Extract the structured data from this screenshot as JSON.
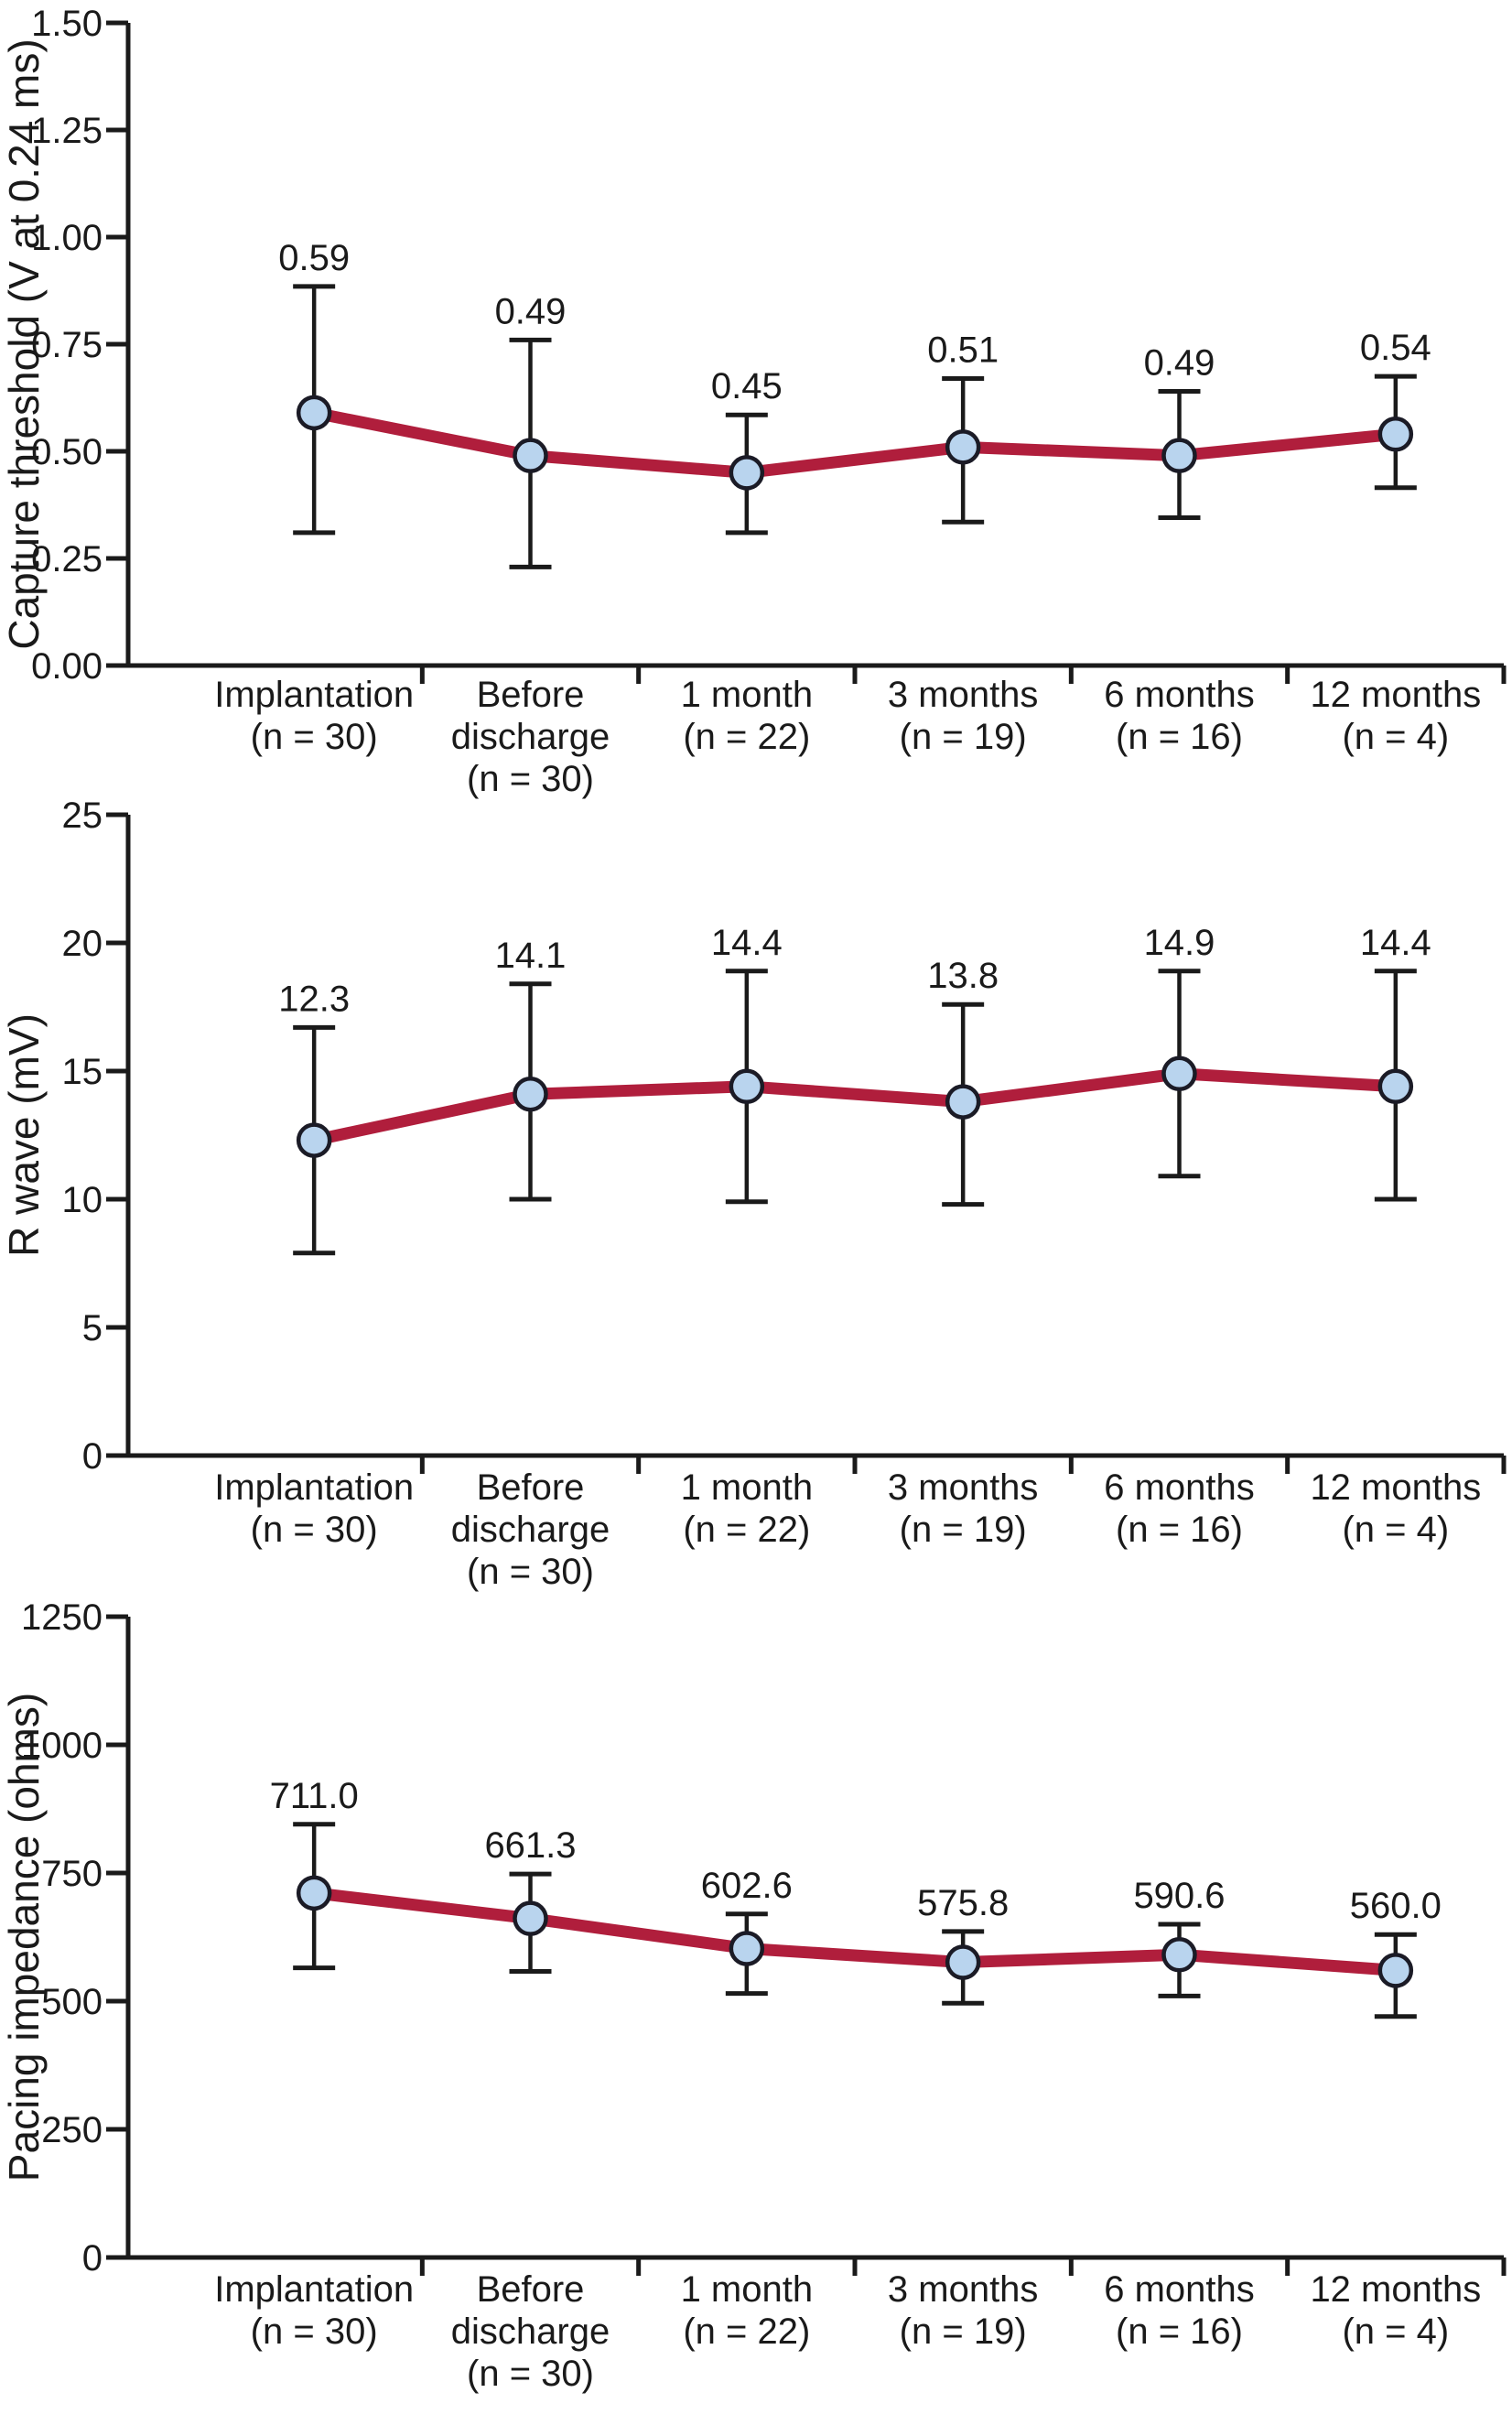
{
  "figure": {
    "background": "#ffffff",
    "text_color": "#1a1a1a",
    "axis_color": "#1a1a1a",
    "line_color": "#b01e3c",
    "marker_fill": "#b9d4ee",
    "marker_stroke": "#1b1b26",
    "error_bar_color": "#1a1a1a"
  },
  "chart_data": [
    {
      "type": "line",
      "title": "",
      "xlabel": "",
      "ylabel": "Capture threshold (V at 0.24 ms)",
      "ylim": [
        0,
        1.5
      ],
      "grid": false,
      "legend_position": "none",
      "ytick_values": [
        1.5,
        1.25,
        1.0,
        0.75,
        0.5,
        0.25,
        0
      ],
      "ytick_labels": [
        "1.50",
        "1.25",
        "1.00",
        "0.75",
        "0.50",
        "0.25",
        "0.00"
      ],
      "categories": [
        [
          "Implantation",
          "(n = 30)"
        ],
        [
          "Before",
          "discharge",
          "(n = 30)"
        ],
        [
          "1 month",
          "(n = 22)"
        ],
        [
          "3 months",
          "(n = 19)"
        ],
        [
          "6 months",
          "(n = 16)"
        ],
        [
          "12 months",
          "(n = 4)"
        ]
      ],
      "values": [
        0.59,
        0.49,
        0.45,
        0.51,
        0.49,
        0.54
      ],
      "value_labels": [
        "0.59",
        "0.49",
        "0.45",
        "0.51",
        "0.49",
        "0.54"
      ],
      "error_high": [
        0.885,
        0.76,
        0.585,
        0.67,
        0.64,
        0.675
      ],
      "error_low": [
        0.31,
        0.23,
        0.31,
        0.335,
        0.345,
        0.415
      ]
    },
    {
      "type": "line",
      "title": "",
      "xlabel": "",
      "ylabel": "R wave (mV)",
      "ylim": [
        0,
        25
      ],
      "grid": false,
      "legend_position": "none",
      "ytick_values": [
        25,
        20,
        15,
        10,
        5,
        0
      ],
      "ytick_labels": [
        "25",
        "20",
        "15",
        "10",
        "5",
        "0"
      ],
      "categories": [
        [
          "Implantation",
          "(n = 30)"
        ],
        [
          "Before",
          "discharge",
          "(n = 30)"
        ],
        [
          "1 month",
          "(n = 22)"
        ],
        [
          "3 months",
          "(n = 19)"
        ],
        [
          "6 months",
          "(n = 16)"
        ],
        [
          "12 months",
          "(n = 4)"
        ]
      ],
      "values": [
        12.3,
        14.1,
        14.4,
        13.8,
        14.9,
        14.4
      ],
      "value_labels": [
        "12.3",
        "14.1",
        "14.4",
        "13.8",
        "14.9",
        "14.4"
      ],
      "error_high": [
        16.7,
        18.4,
        18.9,
        17.6,
        18.9,
        18.9
      ],
      "error_low": [
        7.9,
        10.0,
        9.9,
        9.8,
        10.9,
        10.0
      ]
    },
    {
      "type": "line",
      "title": "",
      "xlabel": "",
      "ylabel": "Pacing impedance (ohms)",
      "ylim": [
        0,
        1250
      ],
      "grid": false,
      "legend_position": "none",
      "ytick_values": [
        1250,
        1000,
        750,
        500,
        250,
        0
      ],
      "ytick_labels": [
        "1250",
        "1000",
        "750",
        "500",
        "250",
        "0"
      ],
      "categories": [
        [
          "Implantation",
          "(n = 30)"
        ],
        [
          "Before",
          "discharge",
          "(n = 30)"
        ],
        [
          "1 month",
          "(n = 22)"
        ],
        [
          "3 months",
          "(n = 19)"
        ],
        [
          "6 months",
          "(n = 16)"
        ],
        [
          "12 months",
          "(n = 4)"
        ]
      ],
      "values": [
        711.0,
        661.3,
        602.6,
        575.8,
        590.6,
        560.0
      ],
      "value_labels": [
        "711.0",
        "661.3",
        "602.6",
        "575.8",
        "590.6",
        "560.0"
      ],
      "error_high": [
        845,
        748,
        670,
        636,
        650,
        630
      ],
      "error_low": [
        565,
        558,
        515,
        496,
        510,
        470
      ]
    }
  ]
}
